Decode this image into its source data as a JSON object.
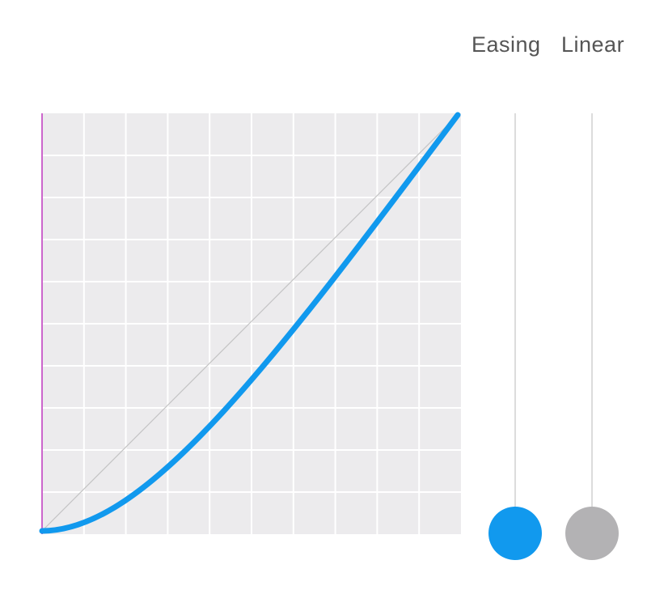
{
  "labels": {
    "easing": "Easing",
    "linear": "Linear"
  },
  "colors": {
    "grid_background": "#ecebed",
    "grid_lines": "#ffffff",
    "easing_curve": "#1199ee",
    "linear_line": "#c4c4c4",
    "axis": "#cc66cc",
    "easing_knob": "#1199ee",
    "linear_knob": "#b3b2b4"
  },
  "graph": {
    "grid_divisions": 10,
    "easing_control_points": [
      0.25,
      0.0,
      0.55,
      0.4
    ],
    "easing_progress": 0,
    "linear_progress": 0
  }
}
